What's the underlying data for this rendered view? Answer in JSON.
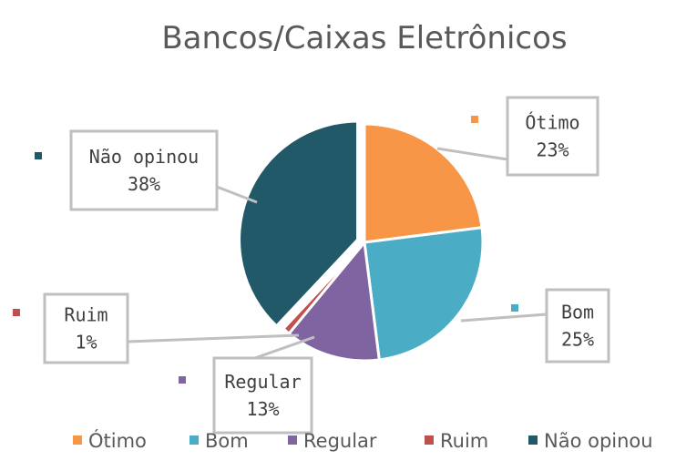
{
  "chart_data": {
    "type": "pie",
    "title": "Bancos/Caixas Eletrônicos",
    "slices": [
      {
        "label": "Ótimo",
        "value": 23,
        "display": "23%",
        "color": "#F79646"
      },
      {
        "label": "Bom",
        "value": 25,
        "display": "25%",
        "color": "#4BACC6"
      },
      {
        "label": "Regular",
        "value": 13,
        "display": "13%",
        "color": "#8064A2"
      },
      {
        "label": "Ruim",
        "value": 1,
        "display": "1%",
        "color": "#C0504D"
      },
      {
        "label": "Não opinou",
        "value": 38,
        "display": "38%",
        "color": "#215968"
      }
    ],
    "legend": {
      "position": "bottom",
      "entries": [
        "Ótimo",
        "Bom",
        "Regular",
        "Ruim",
        "Não opinou"
      ]
    },
    "data_labels": "callouts with category name and percentage"
  }
}
